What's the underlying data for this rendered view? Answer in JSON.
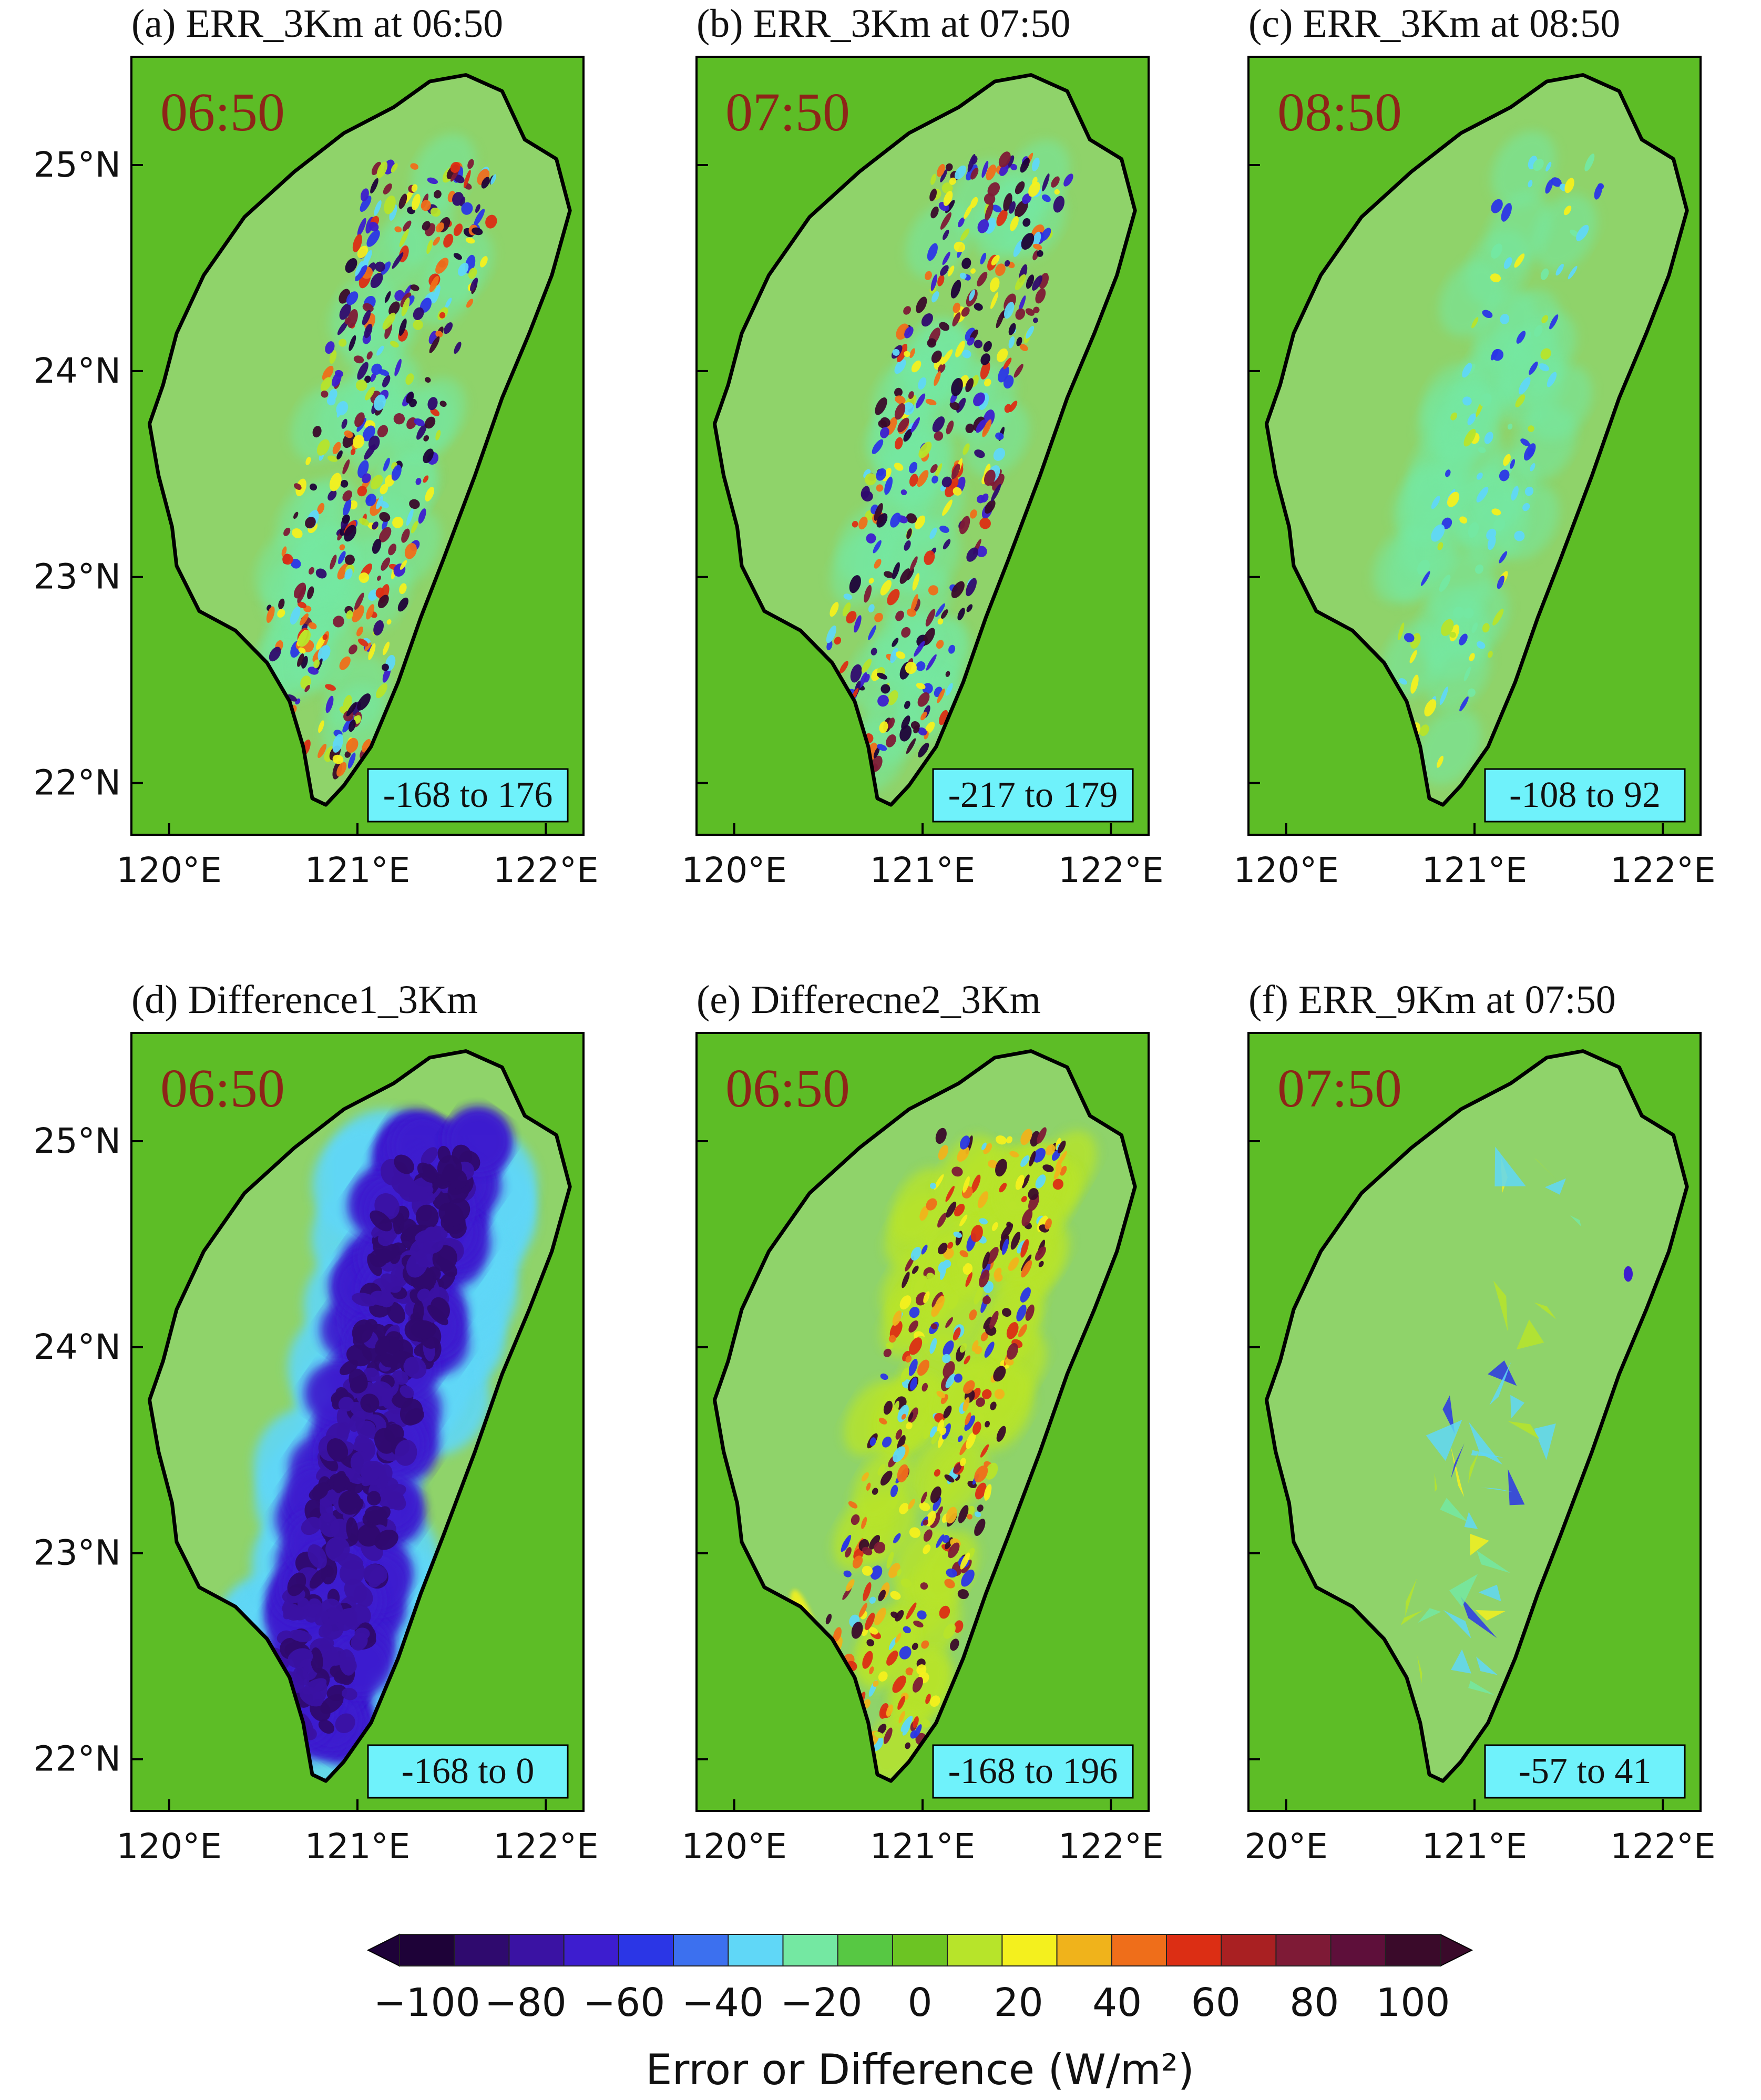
{
  "panels": [
    {
      "id": "a",
      "title": "(a) ERR_3Km at 06:50",
      "time": "06:50",
      "range": "-168 to 176",
      "yticks": [
        "25°N",
        "24°N",
        "23°N",
        "22°N"
      ],
      "xticks": [
        "120°E",
        "121°E",
        "122°E"
      ],
      "pattern": "mixed-strong"
    },
    {
      "id": "b",
      "title": "(b) ERR_3Km at 07:50",
      "time": "07:50",
      "range": "-217 to 179",
      "yticks": [],
      "xticks": [
        "120°E",
        "121°E",
        "122°E"
      ],
      "pattern": "mixed-strong"
    },
    {
      "id": "c",
      "title": "(c) ERR_3Km  at 08:50",
      "time": "08:50",
      "range": "-108 to 92",
      "yticks": [],
      "xticks": [
        "120°E",
        "121°E",
        "122°E"
      ],
      "pattern": "mixed-weak"
    },
    {
      "id": "d",
      "title": "(d) Difference1_3Km",
      "time": "06:50",
      "range": "-168 to 0",
      "yticks": [
        "25°N",
        "24°N",
        "23°N",
        "22°N"
      ],
      "xticks": [
        "120°E",
        "121°E",
        "122°E"
      ],
      "pattern": "negative"
    },
    {
      "id": "e",
      "title": "(e) Differecne2_3Km",
      "time": "06:50",
      "range": "-168 to 196",
      "yticks": [],
      "xticks": [
        "120°E",
        "121°E",
        "122°E"
      ],
      "pattern": "positive"
    },
    {
      "id": "f",
      "title": "(f) ERR_9Km at 07:50",
      "time": "07:50",
      "range": "-57 to 41",
      "yticks": [],
      "xticks": [
        "20°E",
        "121°E",
        "122°E"
      ],
      "pattern": "coarse"
    }
  ],
  "colorbar": {
    "ticks": [
      "−100",
      "−80",
      "−60",
      "−40",
      "−20",
      "0",
      "20",
      "40",
      "60",
      "80",
      "100"
    ],
    "title": "Error or Difference (W/m²)",
    "colors": [
      "#1e0238",
      "#2f0a6e",
      "#3a12a3",
      "#3d1dcf",
      "#2b36e6",
      "#3c70ef",
      "#60d7f7",
      "#74e8a2",
      "#57c843",
      "#6cc423",
      "#b7e42a",
      "#f4f01e",
      "#f0b31b",
      "#ef6e1a",
      "#dc2e14",
      "#a92022",
      "#7e1a36",
      "#5e0f3a",
      "#3a0a2a"
    ]
  },
  "chart_data": {
    "type": "heatmap",
    "title": "",
    "colorbar_label": "Error or Difference (W/m²)",
    "colorbar_range": [
      -100,
      100
    ],
    "colorbar_ticks": [
      -100,
      -80,
      -60,
      -40,
      -20,
      0,
      20,
      40,
      60,
      80,
      100
    ],
    "lon_range": [
      120,
      122
    ],
    "lat_range": [
      22,
      25
    ],
    "panels": [
      {
        "id": "a",
        "quantity": "ERR_3Km",
        "time": "06:50",
        "min": -168,
        "max": 176
      },
      {
        "id": "b",
        "quantity": "ERR_3Km",
        "time": "07:50",
        "min": -217,
        "max": 179
      },
      {
        "id": "c",
        "quantity": "ERR_3Km",
        "time": "08:50",
        "min": -108,
        "max": 92
      },
      {
        "id": "d",
        "quantity": "Difference1_3Km",
        "time": "06:50",
        "min": -168,
        "max": 0
      },
      {
        "id": "e",
        "quantity": "Differecne2_3Km",
        "time": "06:50",
        "min": -168,
        "max": 196
      },
      {
        "id": "f",
        "quantity": "ERR_9Km",
        "time": "07:50",
        "min": -57,
        "max": 41
      }
    ]
  }
}
